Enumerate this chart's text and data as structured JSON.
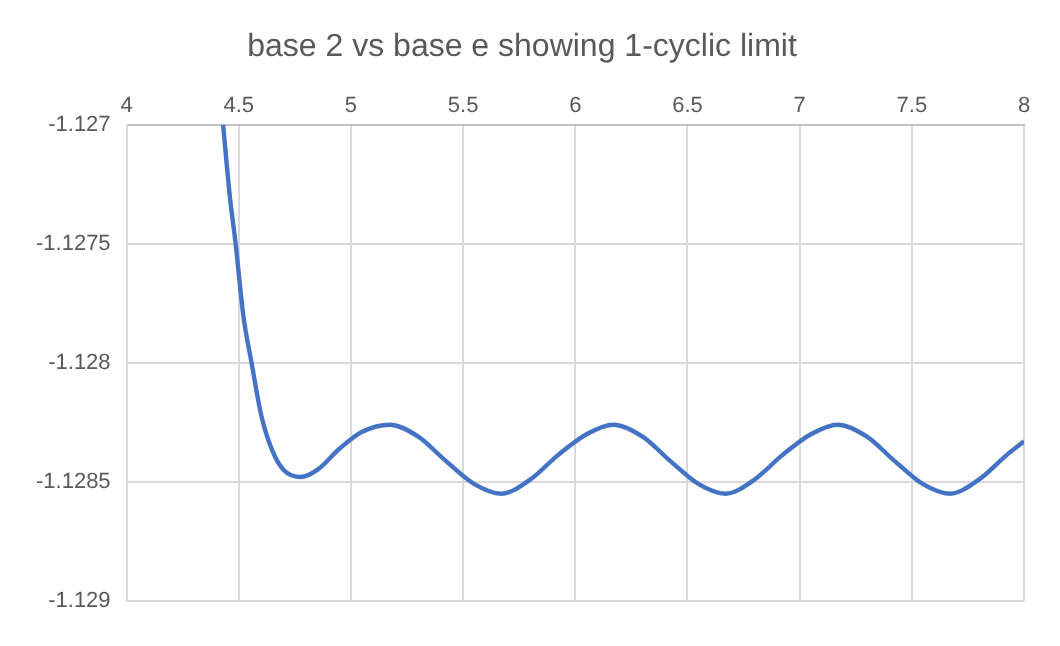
{
  "chart_data": {
    "type": "line",
    "title": "base 2 vs base e showing 1-cyclic limit",
    "x": [
      4.43,
      4.46,
      4.486,
      4.52,
      4.557,
      4.6,
      4.65,
      4.7,
      4.776,
      4.85,
      4.95,
      5.05,
      5.173,
      5.3,
      5.42,
      5.55,
      5.67,
      5.8,
      5.92,
      6.05,
      6.17,
      6.3,
      6.42,
      6.55,
      6.67,
      6.8,
      6.92,
      7.05,
      7.17,
      7.3,
      7.42,
      7.55,
      7.67,
      7.8,
      7.92,
      8
    ],
    "series": [
      {
        "color": "#4472c4",
        "values": [
          -1.127,
          -1.1273,
          -1.1275,
          -1.1278,
          -1.128,
          -1.12822,
          -1.12837,
          -1.12845,
          -1.12848,
          -1.12845,
          -1.12836,
          -1.12829,
          -1.12826,
          -1.12831,
          -1.12841,
          -1.12851,
          -1.12855,
          -1.12849,
          -1.12839,
          -1.1283,
          -1.12826,
          -1.12831,
          -1.12841,
          -1.12851,
          -1.12855,
          -1.12849,
          -1.12839,
          -1.1283,
          -1.12826,
          -1.12831,
          -1.12841,
          -1.12851,
          -1.12855,
          -1.12849,
          -1.12839,
          -1.12833
        ]
      }
    ],
    "xlim": [
      4,
      8
    ],
    "xticks": [
      4,
      4.5,
      5,
      5.5,
      6,
      6.5,
      7,
      7.5,
      8
    ],
    "ylim": [
      -1.129,
      -1.127
    ],
    "yticks": [
      -1.129,
      -1.1285,
      -1.128,
      -1.1275,
      -1.127
    ],
    "grid": true,
    "legend": false,
    "marker": "none",
    "line_style": "solid"
  }
}
